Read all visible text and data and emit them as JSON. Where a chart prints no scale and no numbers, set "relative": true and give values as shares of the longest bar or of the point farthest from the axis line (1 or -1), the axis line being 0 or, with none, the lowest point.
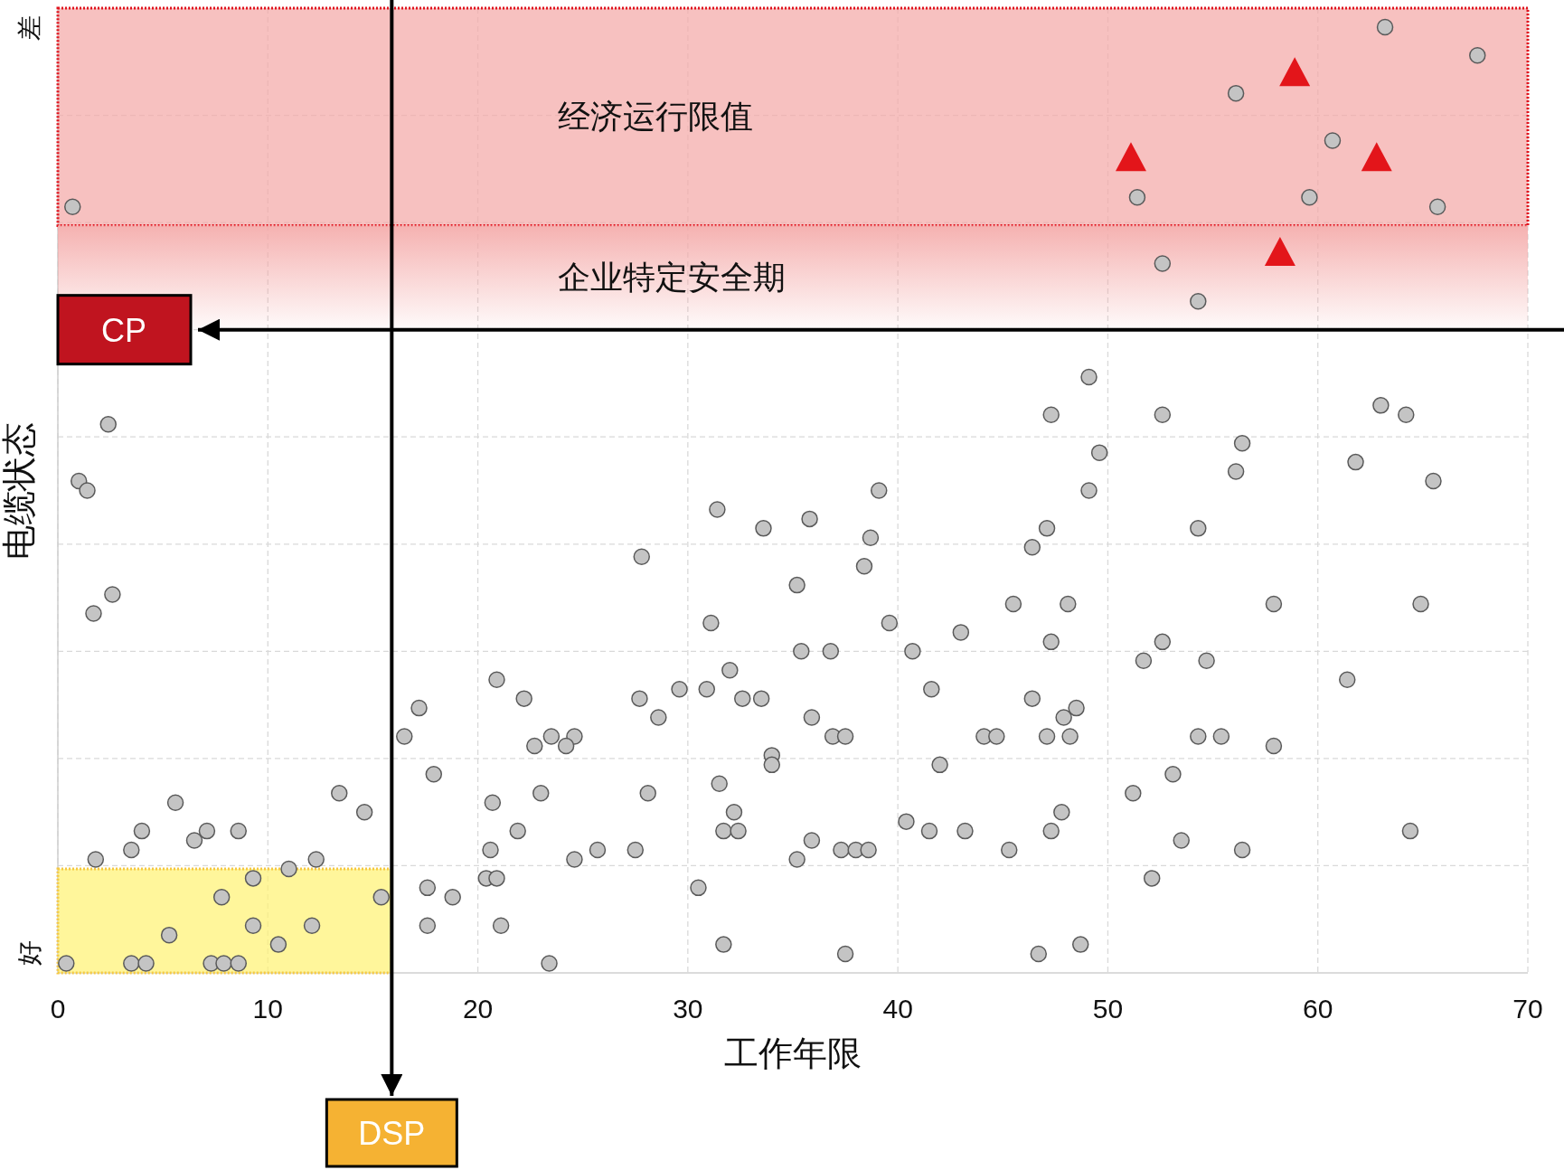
{
  "chart_data": {
    "type": "scatter",
    "xlabel": "工作年限",
    "ylabel": "电缆状态",
    "relative": true,
    "annotations": [
      "好",
      "差"
    ],
    "xlim": [
      0,
      70
    ],
    "xticks": [
      0,
      10,
      20,
      30,
      40,
      50,
      60,
      70
    ],
    "grid": true,
    "bands": [
      {
        "axis": "y",
        "from": 0.79,
        "to": 1.02,
        "label": "经济运行限值",
        "color": "#f4a9a8"
      },
      {
        "axis": "y",
        "from": 0.68,
        "to": 0.79,
        "label": "企业特定安全期",
        "color": "#f4a9a8"
      },
      {
        "axis": "y",
        "from": 0,
        "to": 0.11,
        "color": "#fff275"
      }
    ],
    "ref_lines": [
      {
        "axis": "y",
        "value": 0.68,
        "label": "CP",
        "color": "#000000"
      },
      {
        "axis": "x",
        "value": 15.9,
        "label": "DSP",
        "color": "#000000"
      }
    ],
    "series": [
      {
        "marker": "circle",
        "color": "#c4c4c4",
        "x": [
          0.7,
          63.2,
          67.6,
          56.1,
          60.7,
          51.4,
          59.6,
          65.7,
          52.6,
          54.3,
          2.4,
          1.0,
          1.4,
          2.6,
          1.7,
          49.1,
          47.3,
          52.6,
          63.0,
          64.2,
          56.4,
          49.6,
          56.1,
          61.8,
          65.5,
          49.1,
          39.1,
          31.4,
          33.6,
          35.8,
          47.1,
          54.3,
          46.4,
          38.7,
          27.8,
          35.2,
          38.4,
          45.5,
          48.1,
          57.9,
          64.9,
          31.1,
          39.6,
          43.0,
          40.7,
          47.3,
          52.6,
          51.7,
          54.7,
          35.4,
          36.8,
          20.9,
          32.0,
          61.4,
          22.2,
          27.7,
          29.6,
          30.9,
          32.6,
          33.5,
          41.6,
          46.4,
          28.6,
          17.2,
          48.5,
          47.9,
          16.5,
          23.5,
          24.6,
          22.7,
          24.2,
          35.9,
          36.9,
          37.5,
          44.1,
          44.7,
          47.1,
          48.2,
          54.3,
          55.4,
          57.9,
          34.0,
          34.0,
          42.0,
          17.9,
          53.1,
          31.5,
          23.0,
          51.2,
          5.6,
          13.4,
          14.6,
          20.7,
          28.1,
          32.2,
          4.0,
          7.1,
          6.5,
          8.6,
          3.5,
          1.8,
          12.3,
          21.9,
          20.6,
          24.6,
          25.7,
          27.5,
          31.7,
          32.4,
          35.9,
          35.2,
          37.3,
          38.0,
          38.6,
          40.4,
          41.5,
          43.2,
          45.3,
          47.3,
          47.8,
          53.5,
          56.4,
          64.4,
          52.1,
          20.4,
          20.9,
          30.5,
          17.6,
          18.8,
          17.6,
          21.1,
          31.7,
          23.4,
          37.5,
          46.7,
          48.7,
          0.4,
          3.5,
          4.2,
          7.3,
          7.9,
          8.6,
          10.5,
          5.3,
          9.3,
          12.1,
          7.8,
          9.3,
          11.0,
          15.4
        ],
        "values": [
          0.81,
          1,
          0.97,
          0.93,
          0.88,
          0.82,
          0.82,
          0.81,
          0.75,
          0.71,
          0.58,
          0.52,
          0.51,
          0.4,
          0.38,
          0.63,
          0.59,
          0.59,
          0.6,
          0.59,
          0.56,
          0.55,
          0.53,
          0.54,
          0.52,
          0.51,
          0.51,
          0.49,
          0.47,
          0.48,
          0.47,
          0.47,
          0.45,
          0.46,
          0.44,
          0.41,
          0.43,
          0.39,
          0.39,
          0.39,
          0.39,
          0.37,
          0.37,
          0.36,
          0.34,
          0.35,
          0.35,
          0.33,
          0.33,
          0.34,
          0.34,
          0.31,
          0.32,
          0.31,
          0.29,
          0.29,
          0.3,
          0.3,
          0.29,
          0.29,
          0.3,
          0.29,
          0.27,
          0.28,
          0.28,
          0.27,
          0.25,
          0.25,
          0.25,
          0.24,
          0.24,
          0.27,
          0.25,
          0.25,
          0.25,
          0.25,
          0.25,
          0.25,
          0.25,
          0.25,
          0.24,
          0.23,
          0.22,
          0.22,
          0.21,
          0.21,
          0.2,
          0.19,
          0.19,
          0.18,
          0.19,
          0.17,
          0.18,
          0.19,
          0.17,
          0.15,
          0.15,
          0.14,
          0.15,
          0.13,
          0.12,
          0.12,
          0.15,
          0.13,
          0.12,
          0.13,
          0.13,
          0.15,
          0.15,
          0.14,
          0.12,
          0.13,
          0.13,
          0.13,
          0.16,
          0.15,
          0.15,
          0.13,
          0.15,
          0.17,
          0.14,
          0.13,
          0.15,
          0.1,
          0.1,
          0.1,
          0.09,
          0.09,
          0.08,
          0.05,
          0.05,
          0.03,
          0.01,
          0.02,
          0.02,
          0.03,
          0.01,
          0.01,
          0.01,
          0.01,
          0.01,
          0.01,
          0.03,
          0.04,
          0.05,
          0.05,
          0.08,
          0.1,
          0.11,
          0.08
        ]
      },
      {
        "marker": "triangle",
        "color": "#e3151a",
        "x": [
          58.9,
          51.1,
          62.8,
          58.2
        ],
        "values": [
          0.95,
          0.86,
          0.86,
          0.76
        ]
      }
    ]
  }
}
